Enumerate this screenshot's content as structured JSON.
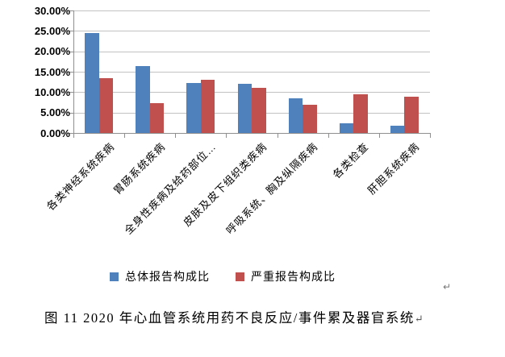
{
  "figure": {
    "caption": "图 11  2020 年心血管系统用药不良反应/事件累及器官系统",
    "caption_return_mark": "↵",
    "floating_return_mark": "↵"
  },
  "chart_data": {
    "type": "bar",
    "title": "",
    "xlabel": "",
    "ylabel": "",
    "ylim": [
      0,
      30
    ],
    "ytick_step": 5,
    "ytick_labels": [
      "0.00%",
      "5.00%",
      "10.00%",
      "15.00%",
      "20.00%",
      "25.00%",
      "30.00%"
    ],
    "grid": true,
    "legend_position": "bottom",
    "categories": [
      "各类神经系统疾病",
      "胃肠系统疾病",
      "全身性疾病及给药部位…",
      "皮肤及皮下组织类疾病",
      "呼吸系统、胸及纵隔疾病",
      "各类检查",
      "肝胆系统疾病"
    ],
    "series": [
      {
        "name": "总体报告构成比",
        "color": "#4F81BD",
        "values": [
          24.4,
          16.4,
          12.2,
          12.0,
          8.4,
          2.3,
          1.7
        ]
      },
      {
        "name": "严重报告构成比",
        "color": "#C0504D",
        "values": [
          13.5,
          7.3,
          13.0,
          11.1,
          7.0,
          9.5,
          8.9
        ]
      }
    ]
  }
}
